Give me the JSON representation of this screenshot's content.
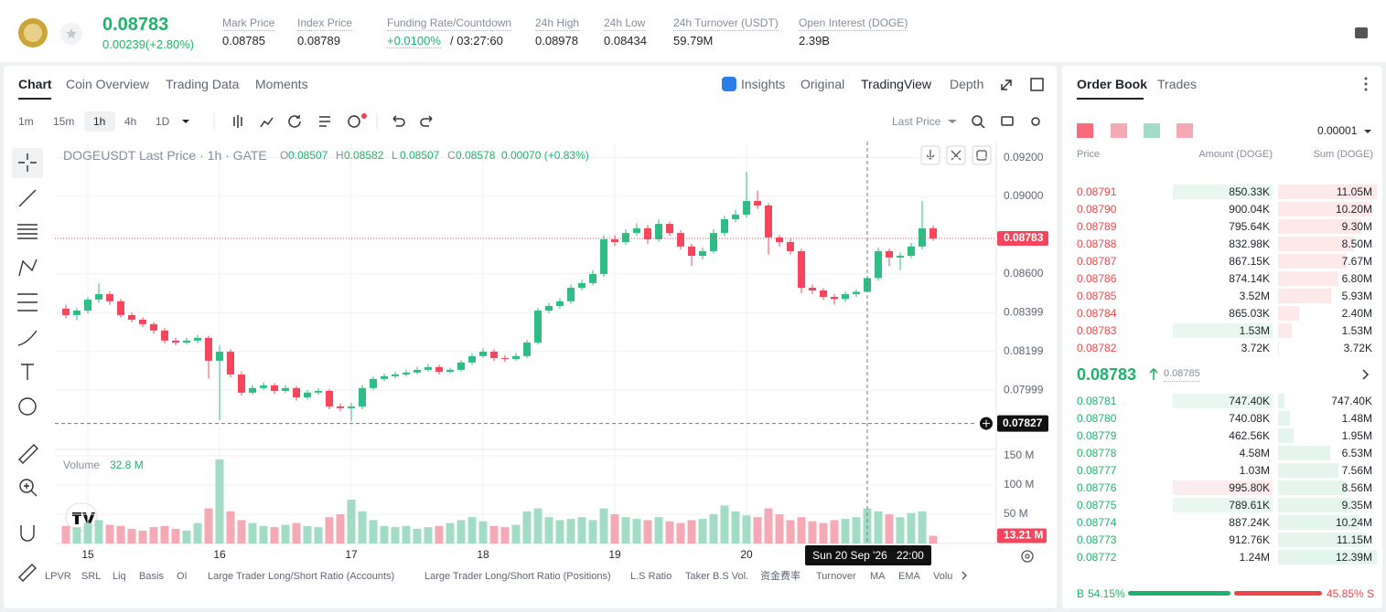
{
  "header": {
    "price": "0.08783",
    "change": "0.00239(+2.80%)",
    "stats": [
      {
        "label": "Mark Price",
        "value": "0.08785"
      },
      {
        "label": "Index Price",
        "value": "0.08789"
      },
      {
        "label": "Funding Rate/Countdown",
        "value": "+0.0100%",
        "countdown": "/ 03:27:60"
      },
      {
        "label": "24h High",
        "value": "0.08978"
      },
      {
        "label": "24h Low",
        "value": "0.08434"
      },
      {
        "label": "24h Turnover (USDT)",
        "value": "59.79M"
      },
      {
        "label": "Open Interest (DOGE)",
        "value": "2.39B"
      }
    ]
  },
  "tabs": [
    "Chart",
    "Coin Overview",
    "Trading Data",
    "Moments"
  ],
  "views": [
    "Insights",
    "Original",
    "TradingView",
    "Depth"
  ],
  "intervals": [
    "1m",
    "15m",
    "1h",
    "4h",
    "1D"
  ],
  "price_type": "Last Price",
  "legend": {
    "symbol": "DOGEUSDT Last Price · 1h · GATE",
    "ohlc": [
      {
        "label": "O",
        "value": "0.08507"
      },
      {
        "label": "H",
        "value": "0.08582"
      },
      {
        "label": "L",
        "value": "0.08507"
      },
      {
        "label": "C",
        "value": "0.08578"
      }
    ],
    "change": "0.00070 (+0.83%)"
  },
  "volume_legend": {
    "label": "Volume",
    "value": "32.8 M"
  },
  "indicators": [
    "LPVR",
    "SRL",
    "Liq",
    "Basis",
    "OI",
    "Large Trader Long/Short Ratio (Accounts)",
    "Large Trader Long/Short Ratio (Positions)",
    "L.S Ratio",
    "Taker B.S Vol.",
    "资金费率",
    "Turnover",
    "MA",
    "EMA",
    "Volu"
  ],
  "chart_data": {
    "type": "candlestick",
    "up_color": "#2ebd85",
    "down_color": "#f6465d",
    "volume_up_color": "#a3dcc6",
    "volume_down_color": "#f5a9b4",
    "candles": [
      [
        0.0842,
        0.0844,
        0.0837,
        0.08387
      ],
      [
        0.08387,
        0.08425,
        0.0836,
        0.0841
      ],
      [
        0.0841,
        0.0848,
        0.08395,
        0.08467
      ],
      [
        0.08467,
        0.0855,
        0.0845,
        0.08495
      ],
      [
        0.08495,
        0.0851,
        0.0844,
        0.08458
      ],
      [
        0.08458,
        0.0847,
        0.08375,
        0.08387
      ],
      [
        0.08387,
        0.084,
        0.0835,
        0.08363
      ],
      [
        0.08363,
        0.08375,
        0.08325,
        0.0834
      ],
      [
        0.0834,
        0.0835,
        0.0829,
        0.08307
      ],
      [
        0.08307,
        0.0832,
        0.0824,
        0.08255
      ],
      [
        0.08255,
        0.0827,
        0.0823,
        0.08245
      ],
      [
        0.08245,
        0.0827,
        0.08235,
        0.08255
      ],
      [
        0.08255,
        0.08285,
        0.0824,
        0.08269
      ],
      [
        0.08269,
        0.0828,
        0.0806,
        0.08151
      ],
      [
        0.08151,
        0.0823,
        0.07844,
        0.08198
      ],
      [
        0.08198,
        0.0821,
        0.08065,
        0.0808
      ],
      [
        0.0808,
        0.08095,
        0.0797,
        0.07986
      ],
      [
        0.07986,
        0.08025,
        0.07975,
        0.0801
      ],
      [
        0.0801,
        0.0804,
        0.08,
        0.08024
      ],
      [
        0.08024,
        0.08035,
        0.0798,
        0.07995
      ],
      [
        0.07995,
        0.08025,
        0.07985,
        0.0801
      ],
      [
        0.0801,
        0.0802,
        0.07945,
        0.07962
      ],
      [
        0.07962,
        0.08,
        0.0795,
        0.07986
      ],
      [
        0.07986,
        0.0801,
        0.07975,
        0.07995
      ],
      [
        0.07995,
        0.08005,
        0.079,
        0.07915
      ],
      [
        0.07915,
        0.0793,
        0.0789,
        0.07906
      ],
      [
        0.07906,
        0.07935,
        0.0784,
        0.07915
      ],
      [
        0.07915,
        0.08025,
        0.079,
        0.0801
      ],
      [
        0.0801,
        0.0807,
        0.08,
        0.08057
      ],
      [
        0.08057,
        0.08085,
        0.08045,
        0.08071
      ],
      [
        0.08071,
        0.08095,
        0.0806,
        0.0808
      ],
      [
        0.0808,
        0.08105,
        0.0807,
        0.0809
      ],
      [
        0.0809,
        0.0812,
        0.0808,
        0.08104
      ],
      [
        0.08104,
        0.08135,
        0.08095,
        0.08118
      ],
      [
        0.08118,
        0.0813,
        0.0808,
        0.08094
      ],
      [
        0.08094,
        0.08115,
        0.08085,
        0.08104
      ],
      [
        0.08104,
        0.08155,
        0.08095,
        0.08142
      ],
      [
        0.08142,
        0.0819,
        0.0813,
        0.08175
      ],
      [
        0.08175,
        0.08215,
        0.08165,
        0.08198
      ],
      [
        0.08198,
        0.0821,
        0.0815,
        0.08165
      ],
      [
        0.08165,
        0.0818,
        0.08145,
        0.0816
      ],
      [
        0.0816,
        0.0819,
        0.0815,
        0.08175
      ],
      [
        0.08175,
        0.0826,
        0.08165,
        0.08245
      ],
      [
        0.08245,
        0.08425,
        0.08235,
        0.0841
      ],
      [
        0.0841,
        0.0845,
        0.08395,
        0.08434
      ],
      [
        0.08434,
        0.08475,
        0.0842,
        0.08458
      ],
      [
        0.08458,
        0.08545,
        0.08445,
        0.08528
      ],
      [
        0.08528,
        0.0857,
        0.08515,
        0.08552
      ],
      [
        0.08552,
        0.0862,
        0.0854,
        0.08599
      ],
      [
        0.08599,
        0.088,
        0.08585,
        0.08778
      ],
      [
        0.08778,
        0.088,
        0.08745,
        0.08764
      ],
      [
        0.08764,
        0.0883,
        0.0875,
        0.08811
      ],
      [
        0.08811,
        0.0886,
        0.08795,
        0.08835
      ],
      [
        0.08835,
        0.0885,
        0.08755,
        0.08778
      ],
      [
        0.08778,
        0.0888,
        0.08765,
        0.08858
      ],
      [
        0.08858,
        0.0887,
        0.08795,
        0.08811
      ],
      [
        0.08811,
        0.08825,
        0.08725,
        0.08741
      ],
      [
        0.08741,
        0.08755,
        0.0864,
        0.08693
      ],
      [
        0.08693,
        0.08735,
        0.08675,
        0.08717
      ],
      [
        0.08717,
        0.0883,
        0.08705,
        0.08811
      ],
      [
        0.08811,
        0.089,
        0.08795,
        0.08882
      ],
      [
        0.08882,
        0.0893,
        0.08865,
        0.08906
      ],
      [
        0.08906,
        0.09127,
        0.0889,
        0.08976
      ],
      [
        0.08976,
        0.0903,
        0.08935,
        0.08953
      ],
      [
        0.08953,
        0.08965,
        0.087,
        0.08788
      ],
      [
        0.08788,
        0.088,
        0.0874,
        0.08764
      ],
      [
        0.08764,
        0.0878,
        0.087,
        0.08717
      ],
      [
        0.08717,
        0.0873,
        0.085,
        0.08528
      ],
      [
        0.08528,
        0.08545,
        0.08495,
        0.08514
      ],
      [
        0.08514,
        0.08525,
        0.08465,
        0.08481
      ],
      [
        0.08481,
        0.08495,
        0.0844,
        0.0847
      ],
      [
        0.0847,
        0.0851,
        0.08455,
        0.08495
      ],
      [
        0.08495,
        0.0852,
        0.0848,
        0.08507
      ],
      [
        0.08507,
        0.08582,
        0.08507,
        0.08578
      ],
      [
        0.08578,
        0.08735,
        0.08565,
        0.08717
      ],
      [
        0.08717,
        0.0873,
        0.0864,
        0.08684
      ],
      [
        0.08684,
        0.0871,
        0.0862,
        0.08693
      ],
      [
        0.08693,
        0.0876,
        0.0868,
        0.08741
      ],
      [
        0.08741,
        0.08976,
        0.08725,
        0.08835
      ],
      [
        0.08835,
        0.0885,
        0.0877,
        0.08783
      ]
    ],
    "volumes": [
      30000000,
      28000000,
      35000000,
      40000000,
      32000000,
      30000000,
      25000000,
      22000000,
      28000000,
      30000000,
      25000000,
      22000000,
      35000000,
      60000000,
      144000000,
      55000000,
      40000000,
      35000000,
      30000000,
      28000000,
      32000000,
      35000000,
      30000000,
      28000000,
      45000000,
      50000000,
      75000000,
      55000000,
      40000000,
      30000000,
      28000000,
      30000000,
      25000000,
      28000000,
      30000000,
      35000000,
      40000000,
      45000000,
      38000000,
      30000000,
      28000000,
      32000000,
      55000000,
      60000000,
      45000000,
      40000000,
      42000000,
      45000000,
      40000000,
      60000000,
      50000000,
      45000000,
      42000000,
      40000000,
      45000000,
      38000000,
      35000000,
      40000000,
      42000000,
      50000000,
      65000000,
      55000000,
      48000000,
      45000000,
      60000000,
      50000000,
      40000000,
      45000000,
      38000000,
      35000000,
      40000000,
      42000000,
      45000000,
      60000000,
      55000000,
      50000000,
      45000000,
      52000000,
      55000000,
      13210000
    ],
    "last_volume_label": "13.21 M",
    "ylim": [
      0.07693,
      0.09283
    ],
    "yticks": [
      {
        "value": 0.092,
        "label": "0.09200"
      },
      {
        "value": 0.09,
        "label": "0.09000"
      },
      {
        "value": 0.086,
        "label": "0.08600"
      },
      0.08399,
      0.08199,
      0.07999
    ],
    "vylim": [
      0,
      156250000
    ],
    "vticks": [
      {
        "value": 150000000,
        "label": "150 M"
      },
      {
        "value": 100000000,
        "label": "100 M"
      },
      {
        "value": 50000000,
        "label": "50 M"
      }
    ],
    "xticks": [
      {
        "value": 2,
        "label": "15"
      },
      {
        "value": 14,
        "label": "16"
      },
      {
        "value": 26,
        "label": "17"
      },
      {
        "value": 38,
        "label": "18"
      },
      {
        "value": 50,
        "label": "19"
      },
      {
        "value": 62,
        "label": "20"
      }
    ],
    "crosshair": {
      "price": 0.07827,
      "time": "Sun 20 Sep '26   22:00"
    },
    "grid": true
  },
  "order_book": {
    "tabs": [
      "Order Book",
      "Trades"
    ],
    "precision": "0.00001",
    "headers": [
      "Price",
      "Amount (DOGE)",
      "Sum (DOGE)"
    ],
    "asks": [
      [
        "0.08791",
        "850.33K",
        "11.05M"
      ],
      [
        "0.08790",
        "900.04K",
        "10.20M"
      ],
      [
        "0.08789",
        "795.64K",
        "9.30M"
      ],
      [
        "0.08788",
        "832.98K",
        "8.50M"
      ],
      [
        "0.08787",
        "867.15K",
        "7.67M"
      ],
      [
        "0.08786",
        "874.14K",
        "6.80M"
      ],
      [
        "0.08785",
        "3.52M",
        "5.93M"
      ],
      [
        "0.08784",
        "865.03K",
        "2.40M"
      ],
      [
        "0.08783",
        "1.53M",
        "1.53M"
      ],
      [
        "0.08782",
        "3.72K",
        "3.72K"
      ]
    ],
    "mid_price": "0.08783",
    "mark": "0.08785",
    "bids": [
      [
        "0.08781",
        "747.40K",
        "747.40K"
      ],
      [
        "0.08780",
        "740.08K",
        "1.48M"
      ],
      [
        "0.08779",
        "462.56K",
        "1.95M"
      ],
      [
        "0.08778",
        "4.58M",
        "6.53M"
      ],
      [
        "0.08777",
        "1.03M",
        "7.56M"
      ],
      [
        "0.08776",
        "995.80K",
        "8.56M"
      ],
      [
        "0.08775",
        "789.61K",
        "9.35M"
      ],
      [
        "0.08774",
        "887.24K",
        "10.24M"
      ],
      [
        "0.08773",
        "912.76K",
        "11.15M"
      ],
      [
        "0.08772",
        "1.24M",
        "12.39M"
      ]
    ],
    "ratio": {
      "buy_label": "B",
      "buy": "54.15%",
      "sell": "45.85%",
      "sell_label": "S"
    }
  }
}
